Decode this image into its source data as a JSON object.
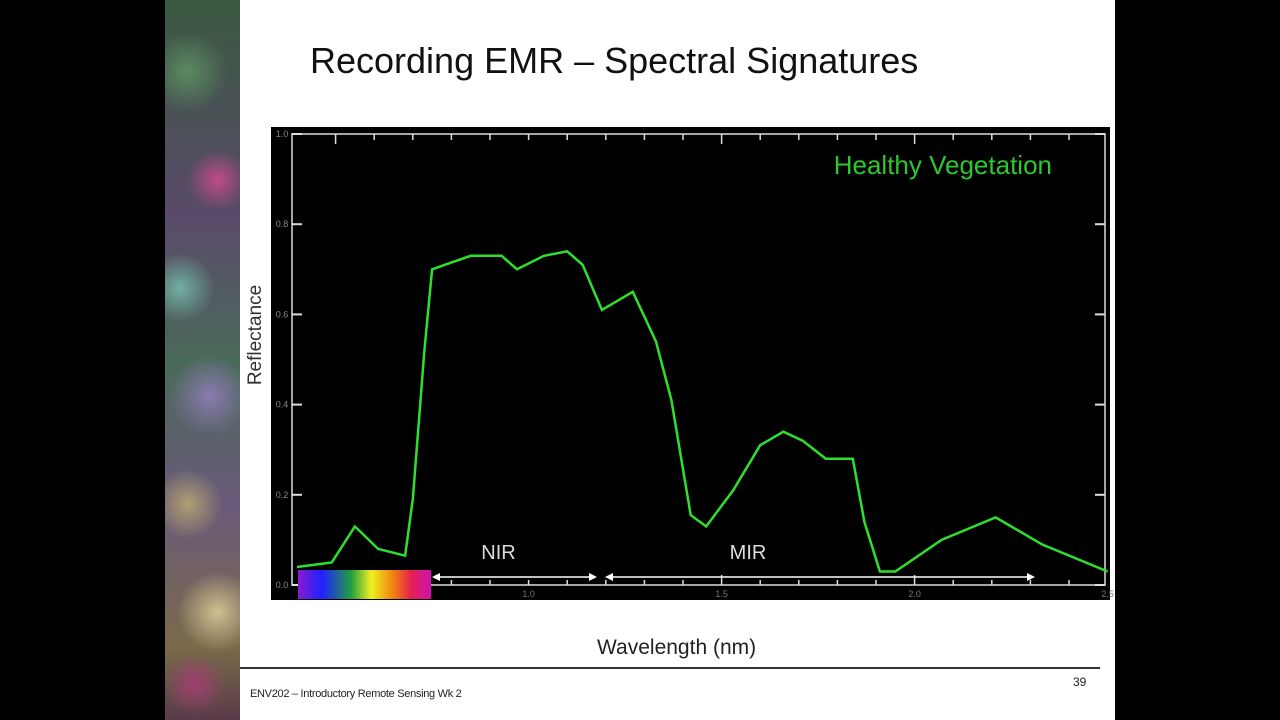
{
  "slide": {
    "title": "Recording EMR – Spectral Signatures",
    "footer": "ENV202 – Introductory Remote Sensing Wk 2",
    "page_number": "39"
  },
  "chart_data": {
    "type": "line",
    "title": "",
    "xlabel": "Wavelength (nm)",
    "ylabel": "Reflectance",
    "xlim": [
      0.4,
      2.5
    ],
    "ylim": [
      0.0,
      1.0
    ],
    "xticks": [
      "1.0",
      "1.5",
      "2.0",
      "2.5"
    ],
    "xtick_values": [
      1.0,
      1.5,
      2.0,
      2.5
    ],
    "yticks": [
      "0.0",
      "0.2",
      "0.4",
      "0.6",
      "0.8",
      "1.0"
    ],
    "ytick_values": [
      0.0,
      0.2,
      0.4,
      0.6,
      0.8,
      1.0
    ],
    "grid": false,
    "legend": "top-right",
    "series": [
      {
        "name": "Healthy Vegetation",
        "color": "#2ee02e",
        "x": [
          0.4,
          0.49,
          0.55,
          0.61,
          0.68,
          0.7,
          0.73,
          0.75,
          0.85,
          0.93,
          0.97,
          1.04,
          1.1,
          1.14,
          1.19,
          1.27,
          1.33,
          1.37,
          1.42,
          1.46,
          1.53,
          1.6,
          1.66,
          1.71,
          1.77,
          1.84,
          1.87,
          1.91,
          1.95,
          2.07,
          2.21,
          2.33,
          2.5
        ],
        "y": [
          0.04,
          0.05,
          0.13,
          0.08,
          0.065,
          0.19,
          0.52,
          0.7,
          0.73,
          0.73,
          0.7,
          0.73,
          0.74,
          0.71,
          0.61,
          0.65,
          0.54,
          0.41,
          0.155,
          0.13,
          0.21,
          0.31,
          0.34,
          0.32,
          0.28,
          0.28,
          0.14,
          0.03,
          0.03,
          0.1,
          0.15,
          0.09,
          0.03
        ]
      }
    ],
    "annotations": [
      {
        "text": "NIR",
        "range": [
          0.7,
          1.2
        ]
      },
      {
        "text": "MIR",
        "range": [
          1.22,
          2.3
        ]
      }
    ],
    "visible_spectrum_bar": [
      0.4,
      0.74
    ]
  }
}
